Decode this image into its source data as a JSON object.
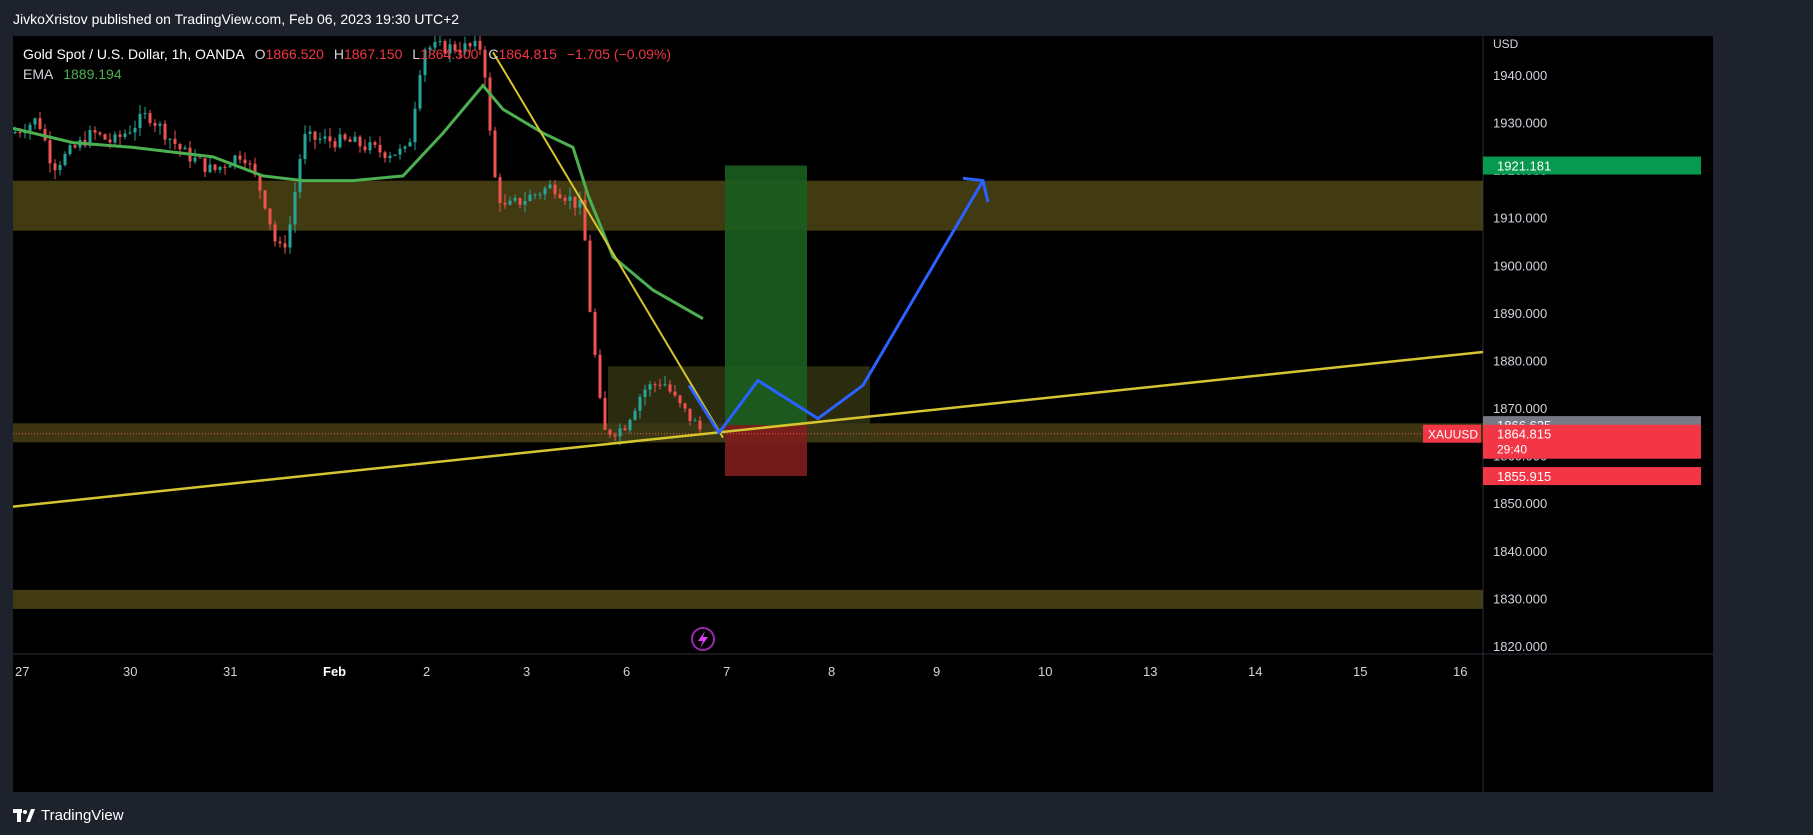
{
  "header": {
    "published": "JivkoXristov published on TradingView.com, Feb 06, 2023 19:30 UTC+2"
  },
  "legend": {
    "symbol": "Gold Spot / U.S. Dollar, 1h, OANDA",
    "open_label": "O",
    "open": "1866.520",
    "high_label": "H",
    "high": "1867.150",
    "low_label": "L",
    "low": "1864.300",
    "close_label": "C",
    "close": "1864.815",
    "change": "−1.705 (−0.09%)",
    "ema_label": "EMA",
    "ema_value": "1889.194"
  },
  "price_axis": {
    "currency": "USD",
    "ticks": [
      "1940.000",
      "1930.000",
      "1920.000",
      "1910.000",
      "1900.000",
      "1890.000",
      "1880.000",
      "1870.000",
      "1860.000",
      "1850.000",
      "1840.000",
      "1830.000",
      "1820.000"
    ]
  },
  "price_labels": {
    "target": "1921.181",
    "entry": "1866.625",
    "current": "1864.815",
    "countdown": "29:40",
    "symbol_tag": "XAUUSD",
    "stop": "1855.915"
  },
  "time_axis": {
    "labels": [
      "27",
      "30",
      "31",
      "Feb",
      "2",
      "3",
      "6",
      "7",
      "8",
      "9",
      "10",
      "13",
      "14",
      "15",
      "16"
    ]
  },
  "colors": {
    "background": "#000000",
    "bull": "#26a69a",
    "bear": "#ef5350",
    "ema": "#4caf50",
    "trendline": "#d6c52e",
    "projection": "#2962ff",
    "zone": "#4d4414",
    "target_zone": "#1b5e20",
    "stop_zone": "#7f1d1d"
  },
  "footer": {
    "brand": "TradingView"
  },
  "icons": {
    "flash": "lightning-icon",
    "logo": "tradingview-logo"
  }
}
